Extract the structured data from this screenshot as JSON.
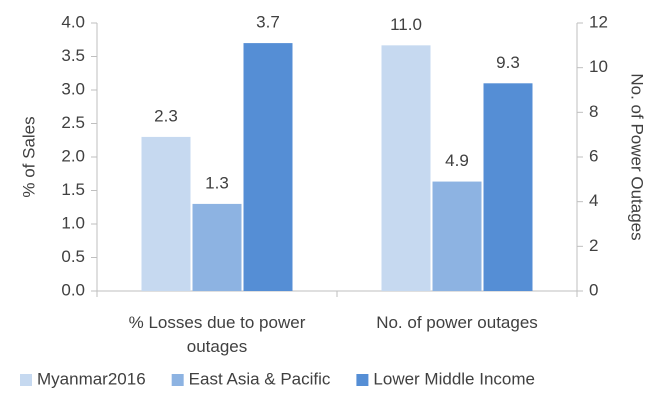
{
  "chart_data": {
    "type": "bar",
    "categories": [
      "% Losses due to power outages",
      "No. of power outages"
    ],
    "category_axes": [
      "y",
      "y2"
    ],
    "ylabel": "% of Sales",
    "y2label": "No. of Power Outages",
    "series": [
      {
        "name": "Myanmar2016",
        "color": "#c6d9f0",
        "values": [
          2.3,
          11.0
        ],
        "value_labels": [
          "2.3",
          "11.0"
        ]
      },
      {
        "name": "East Asia & Pacific",
        "color": "#8db3e2",
        "values": [
          1.3,
          4.9
        ],
        "value_labels": [
          "1.3",
          "4.9"
        ]
      },
      {
        "name": "Lower Middle Income",
        "color": "#558ed5",
        "values": [
          3.7,
          9.3
        ],
        "value_labels": [
          "3.7",
          "9.3"
        ]
      }
    ],
    "ylim": [
      0,
      4
    ],
    "yticks": [
      {
        "value": 0,
        "label": "0.0"
      },
      0.5,
      {
        "value": 1,
        "label": "1.0"
      },
      1.5,
      {
        "value": 2,
        "label": "2.0"
      },
      2.5,
      {
        "value": 3,
        "label": "3.0"
      },
      3.5,
      {
        "value": 4,
        "label": "4.0"
      }
    ],
    "y2lim": [
      0,
      12
    ],
    "y2ticks": [
      0,
      2,
      4,
      6,
      8,
      10,
      12
    ],
    "legend": "bottom",
    "grid": false
  }
}
